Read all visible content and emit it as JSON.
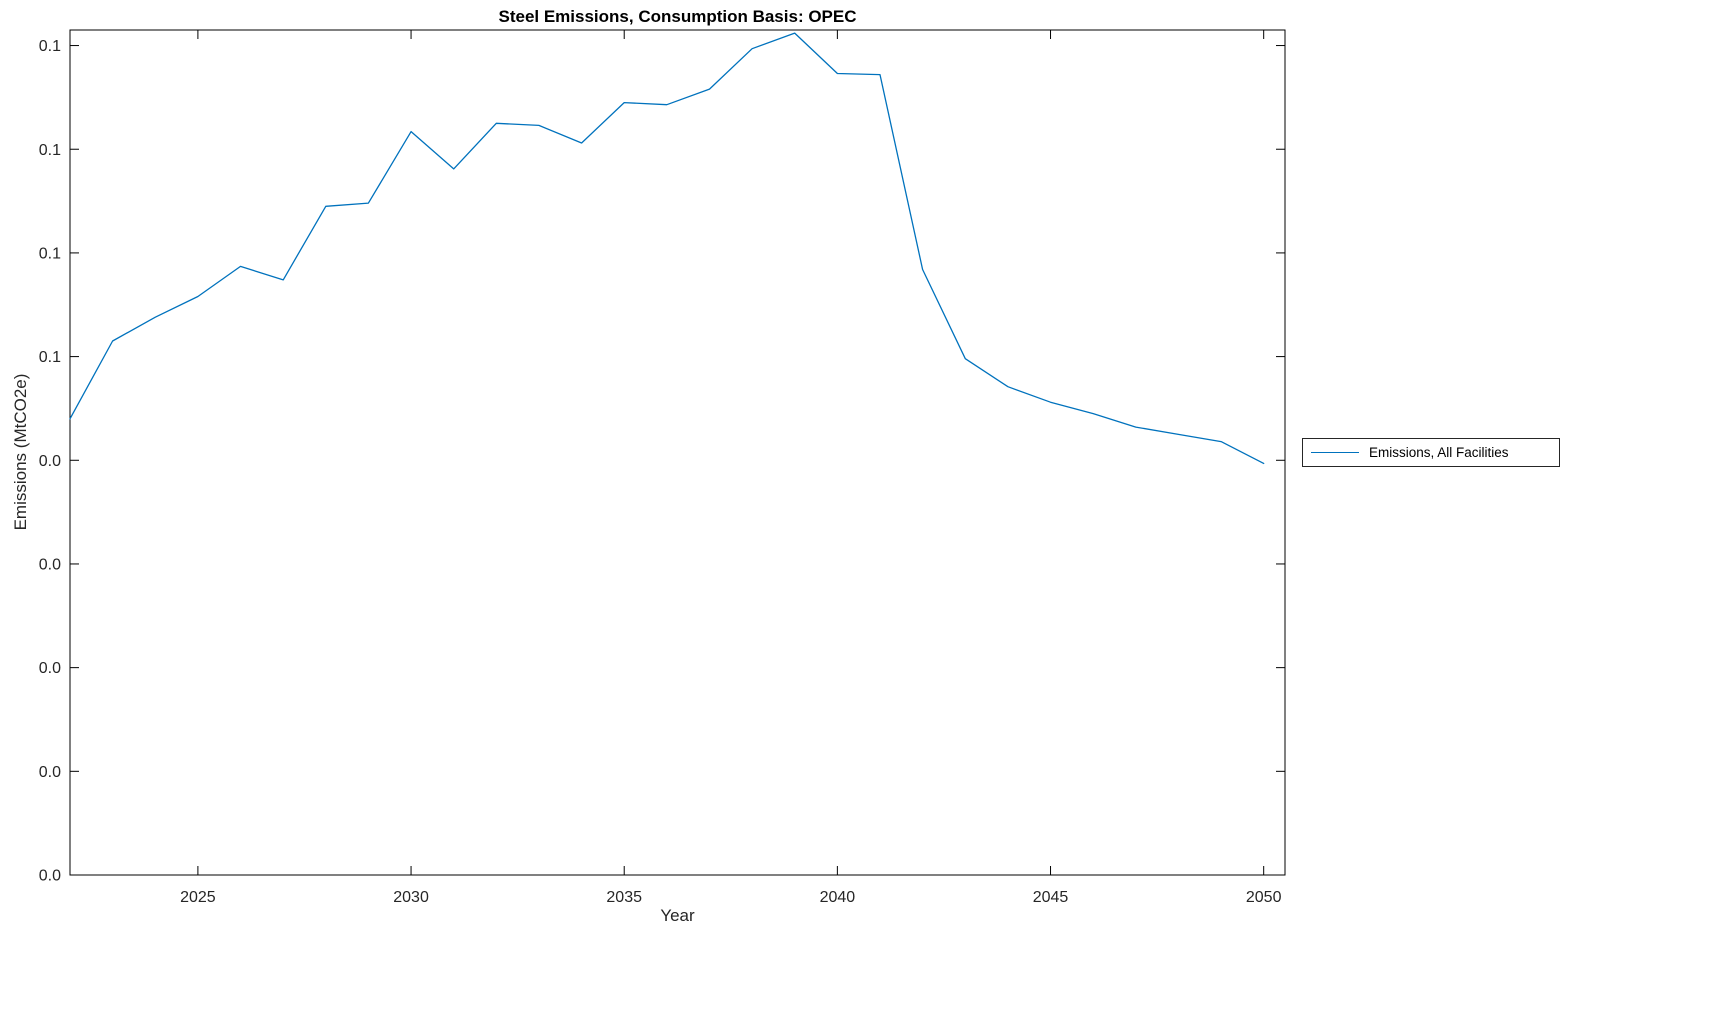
{
  "chart_data": {
    "type": "line",
    "title": "Steel Emissions, Consumption Basis: OPEC",
    "xlabel": "Year",
    "ylabel": "Emissions (MtCO2e)",
    "x": [
      2022,
      2023,
      2024,
      2025,
      2026,
      2027,
      2028,
      2029,
      2030,
      2031,
      2032,
      2033,
      2034,
      2035,
      2036,
      2037,
      2038,
      2039,
      2040,
      2041,
      2042,
      2043,
      2044,
      2045,
      2046,
      2047,
      2048,
      2049,
      2050
    ],
    "series": [
      {
        "name": "Emissions, All Facilities",
        "color": "#0072BD",
        "values": [
          0.044,
          0.0515,
          0.0538,
          0.0558,
          0.0587,
          0.0574,
          0.0645,
          0.0648,
          0.0717,
          0.0681,
          0.0725,
          0.0723,
          0.0706,
          0.0745,
          0.0743,
          0.0758,
          0.0797,
          0.0812,
          0.0773,
          0.0772,
          0.0584,
          0.0498,
          0.0471,
          0.0456,
          0.0445,
          0.0432,
          0.0425,
          0.0418,
          0.0397
        ]
      }
    ],
    "xlim": [
      2022,
      2050.5
    ],
    "ylim": [
      0,
      0.0815
    ],
    "xticks": [
      2025,
      2030,
      2035,
      2040,
      2045,
      2050
    ],
    "xtick_labels": [
      "2025",
      "2030",
      "2035",
      "2040",
      "2045",
      "2050"
    ],
    "yticks": [
      0,
      0.01,
      0.02,
      0.03,
      0.04,
      0.05,
      0.06,
      0.07,
      0.08
    ],
    "ytick_labels": [
      "0.0",
      "0.0",
      "0.0",
      "0.0",
      "0.0",
      "0.1",
      "0.1",
      "0.1",
      "0.1"
    ],
    "grid": false,
    "legend_position": "right-outside",
    "axis_color": "#000000",
    "text_color": "#262626"
  }
}
